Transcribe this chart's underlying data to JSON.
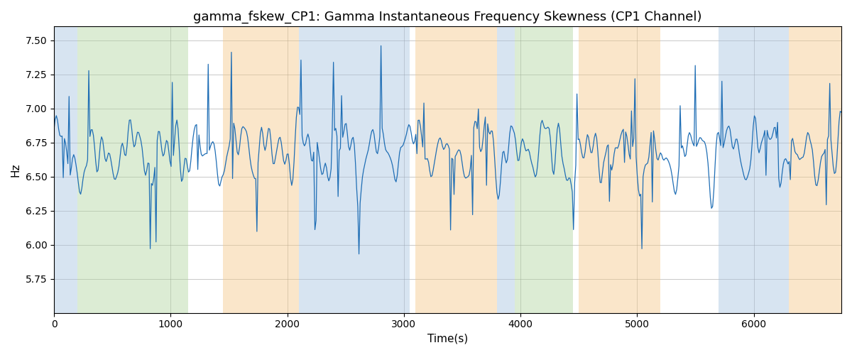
{
  "title": "gamma_fskew_CP1: Gamma Instantaneous Frequency Skewness (CP1 Channel)",
  "xlabel": "Time(s)",
  "ylabel": "Hz",
  "ylim": [
    5.5,
    7.6
  ],
  "yticks": [
    5.75,
    6.0,
    6.25,
    6.5,
    6.75,
    7.0,
    7.25,
    7.5
  ],
  "xlim": [
    0,
    6750
  ],
  "xticks": [
    0,
    1000,
    2000,
    3000,
    4000,
    5000,
    6000
  ],
  "line_color": "#1f6eb5",
  "line_width": 0.9,
  "bg_regions": [
    {
      "xstart": 0,
      "xend": 200,
      "color": "#a8c4e0",
      "alpha": 0.45
    },
    {
      "xstart": 200,
      "xend": 1150,
      "color": "#b2d5a0",
      "alpha": 0.45
    },
    {
      "xstart": 1450,
      "xend": 2100,
      "color": "#f5c98a",
      "alpha": 0.45
    },
    {
      "xstart": 2100,
      "xend": 3050,
      "color": "#a8c4e0",
      "alpha": 0.45
    },
    {
      "xstart": 3100,
      "xend": 3800,
      "color": "#f5c98a",
      "alpha": 0.45
    },
    {
      "xstart": 3800,
      "xend": 3950,
      "color": "#a8c4e0",
      "alpha": 0.45
    },
    {
      "xstart": 3950,
      "xend": 4450,
      "color": "#b2d5a0",
      "alpha": 0.45
    },
    {
      "xstart": 4500,
      "xend": 5200,
      "color": "#f5c98a",
      "alpha": 0.45
    },
    {
      "xstart": 5700,
      "xend": 6300,
      "color": "#a8c4e0",
      "alpha": 0.45
    },
    {
      "xstart": 6300,
      "xend": 6750,
      "color": "#f5c98a",
      "alpha": 0.45
    }
  ],
  "n_points": 680,
  "t_max": 6750,
  "seed": 42
}
